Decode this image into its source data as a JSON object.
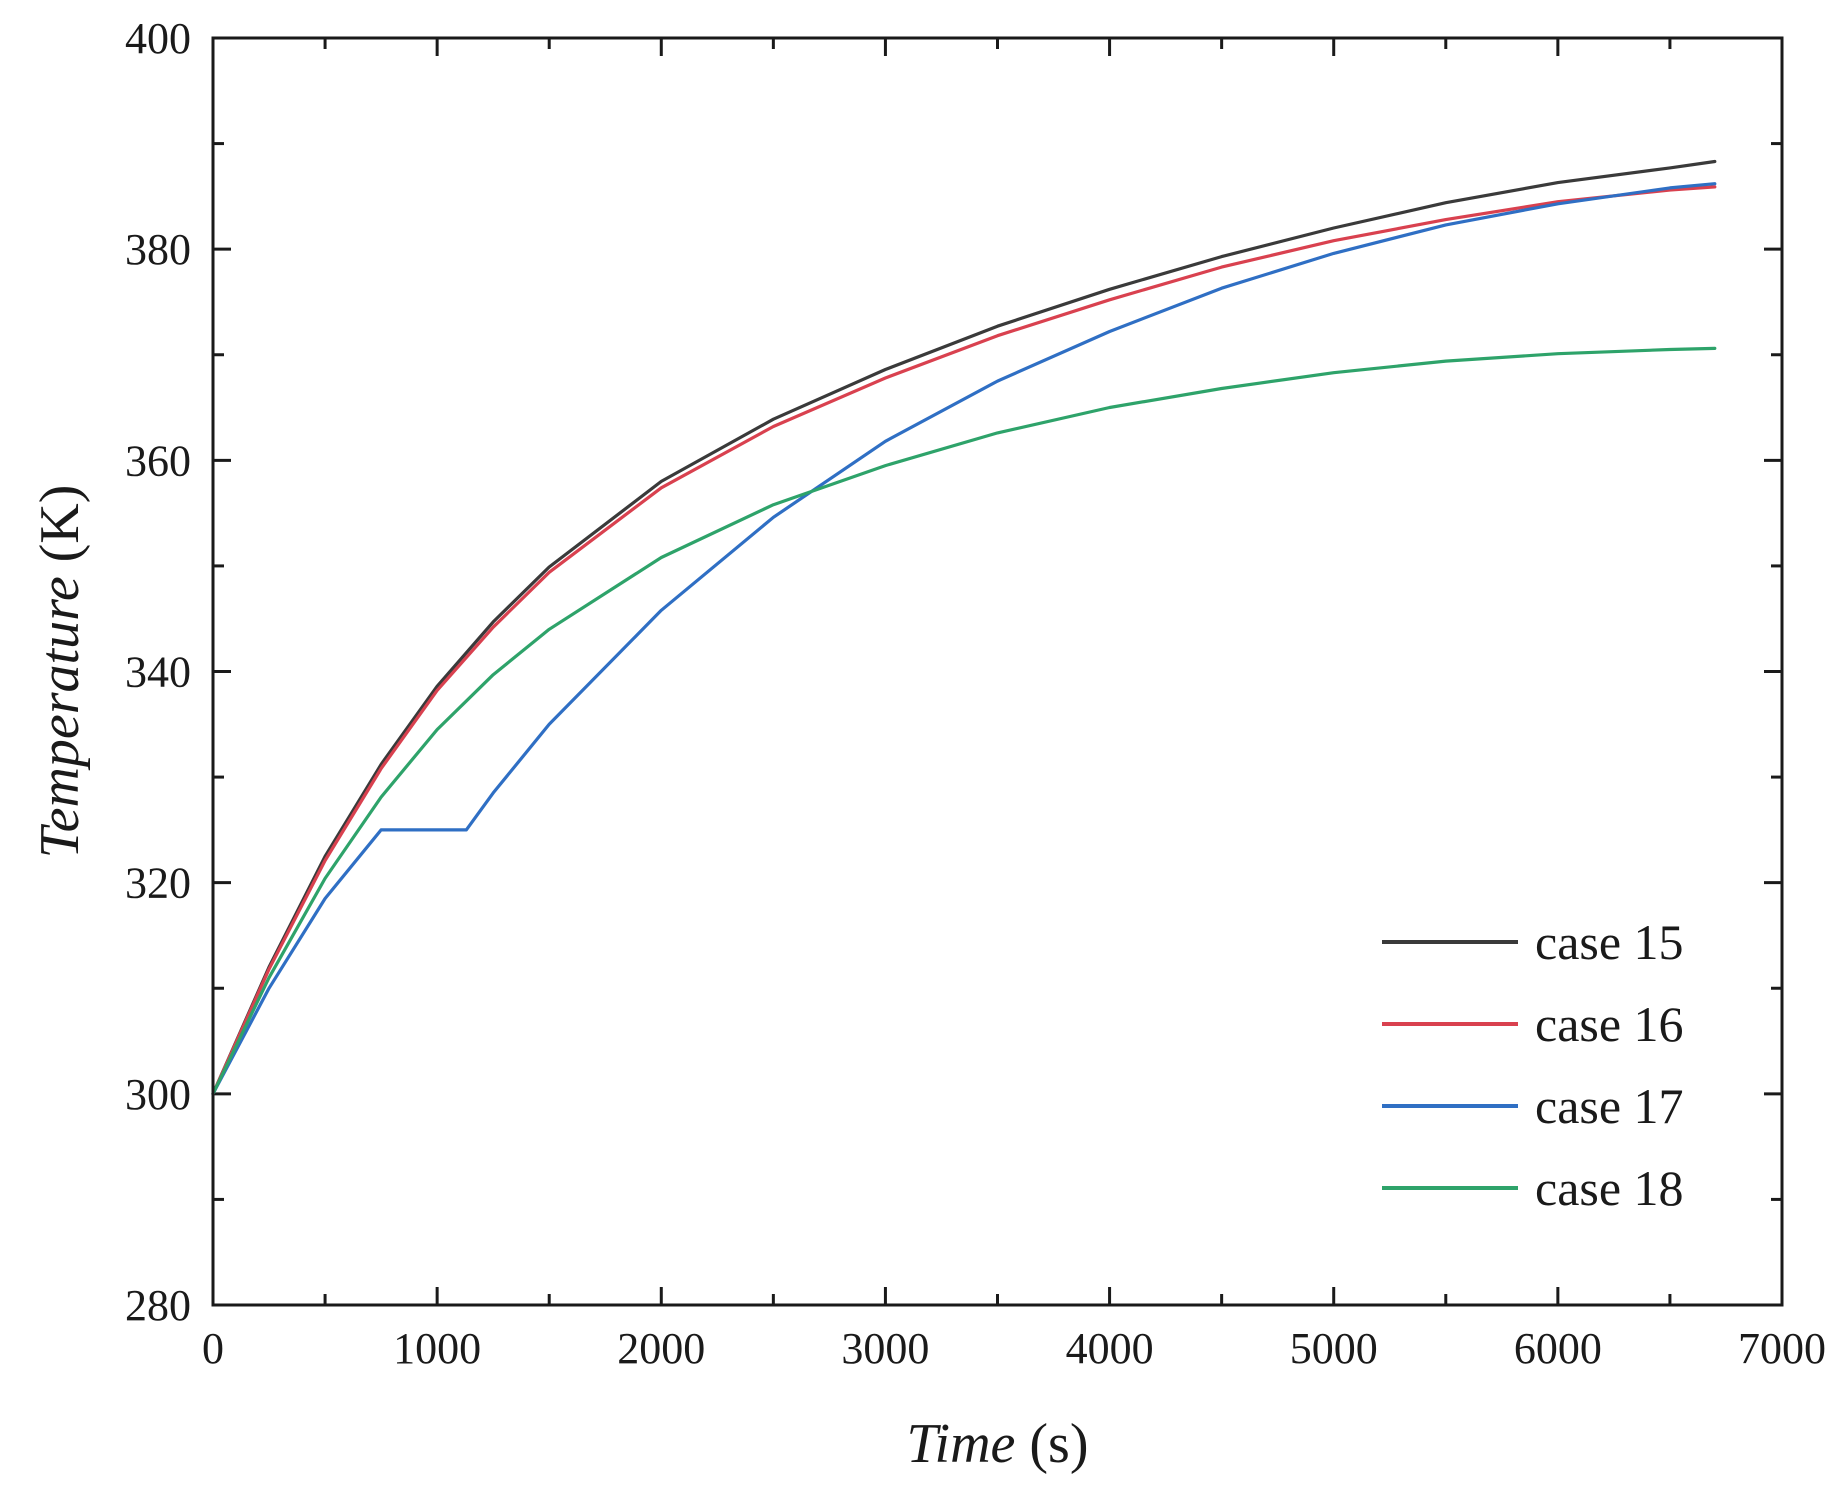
{
  "chart_data": {
    "type": "line",
    "xlabel": {
      "italic": "Time",
      "unit": " (s)"
    },
    "ylabel": {
      "italic": "Temperature",
      "unit": " (K)"
    },
    "xlim": [
      0,
      7000
    ],
    "ylim": [
      280,
      400
    ],
    "x_ticks": [
      0,
      1000,
      2000,
      3000,
      4000,
      5000,
      6000,
      7000
    ],
    "y_ticks": [
      280,
      300,
      320,
      340,
      360,
      380,
      400
    ],
    "x_tick_labels": [
      "0",
      "1000",
      "2000",
      "3000",
      "4000",
      "5000",
      "6000",
      "7000"
    ],
    "y_tick_labels": [
      "280",
      "300",
      "320",
      "340",
      "360",
      "380",
      "400"
    ],
    "grid": false,
    "legend_position": "lower-right",
    "series": [
      {
        "name": "case 15",
        "color": "#3a3a3a",
        "x": [
          0,
          250,
          500,
          750,
          1000,
          1250,
          1500,
          2000,
          2500,
          3000,
          3500,
          4000,
          4500,
          5000,
          5500,
          6000,
          6500,
          6700
        ],
        "y": [
          300,
          312,
          322.5,
          331.2,
          338.6,
          344.7,
          349.9,
          358,
          363.9,
          368.6,
          372.7,
          376.2,
          379.3,
          382,
          384.4,
          386.3,
          387.7,
          388.3
        ]
      },
      {
        "name": "case 16",
        "color": "#d9414f",
        "x": [
          0,
          250,
          500,
          750,
          1000,
          1250,
          1500,
          2000,
          2500,
          3000,
          3500,
          4000,
          4500,
          5000,
          5500,
          6000,
          6500,
          6700
        ],
        "y": [
          300,
          311.8,
          322.1,
          330.8,
          338.2,
          344.2,
          349.4,
          357.4,
          363.2,
          367.8,
          371.8,
          375.2,
          378.3,
          380.8,
          382.8,
          384.5,
          385.6,
          385.9
        ]
      },
      {
        "name": "case 17",
        "color": "#2f6fc4",
        "x": [
          0,
          250,
          500,
          750,
          1000,
          1130,
          1250,
          1500,
          2000,
          2500,
          3000,
          3500,
          4000,
          4500,
          5000,
          5500,
          6000,
          6500,
          6700
        ],
        "y": [
          300,
          310,
          318.5,
          325,
          325,
          325,
          328.5,
          335,
          345.8,
          354.6,
          361.8,
          367.5,
          372.2,
          376.3,
          379.6,
          382.3,
          384.3,
          385.8,
          386.2
        ]
      },
      {
        "name": "case 18",
        "color": "#2ea36a",
        "x": [
          0,
          250,
          500,
          750,
          1000,
          1250,
          1500,
          2000,
          2500,
          3000,
          3500,
          4000,
          4500,
          5000,
          5500,
          6000,
          6500,
          6700
        ],
        "y": [
          300,
          311,
          320.4,
          328.1,
          334.5,
          339.7,
          344,
          350.8,
          355.8,
          359.5,
          362.6,
          365,
          366.8,
          368.3,
          369.4,
          370.1,
          370.5,
          370.6
        ]
      }
    ]
  }
}
